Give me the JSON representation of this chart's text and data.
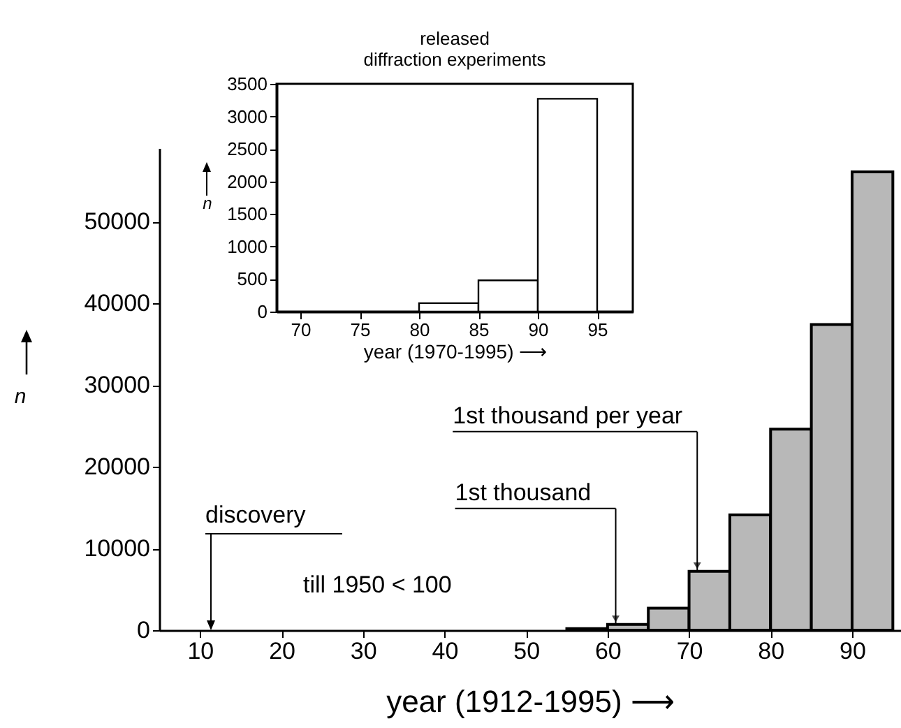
{
  "chart_data": [
    {
      "type": "histogram",
      "xlabel": "year (1912-1995) ⟶",
      "ylabel": "n",
      "bins": [
        55,
        60,
        65,
        70,
        75,
        80,
        85,
        90,
        95
      ],
      "values": [
        200,
        700,
        2700,
        7200,
        14100,
        24600,
        37400,
        56100
      ],
      "color": "#b8b8b8",
      "xlim": [
        5,
        96
      ],
      "xticks": [
        10,
        20,
        30,
        40,
        50,
        60,
        70,
        80,
        90
      ],
      "ylim": [
        0,
        59000
      ],
      "yticks": [
        0,
        10000,
        20000,
        30000,
        40000,
        50000
      ],
      "annotations": [
        "discovery",
        {
          "text": "1st thousand",
          "x": 61,
          "y": 700
        },
        {
          "text": "1st thousand per year",
          "x": 71,
          "y": 7200
        },
        "till 1950 < 100"
      ]
    },
    {
      "type": "histogram",
      "title": "released\ndiffraction experiments",
      "xlabel": "year (1970-1995) ⟶",
      "ylabel": "n",
      "bins": [
        80,
        85,
        90,
        95
      ],
      "values": [
        130,
        480,
        3270
      ],
      "color": "#ffffff",
      "xlim": [
        68,
        98
      ],
      "xticks": [
        70,
        75,
        80,
        85,
        90,
        95
      ],
      "ylim": [
        0,
        3500
      ],
      "yticks": [
        0,
        500,
        1000,
        1500,
        2000,
        2500,
        3000,
        3500
      ]
    }
  ]
}
